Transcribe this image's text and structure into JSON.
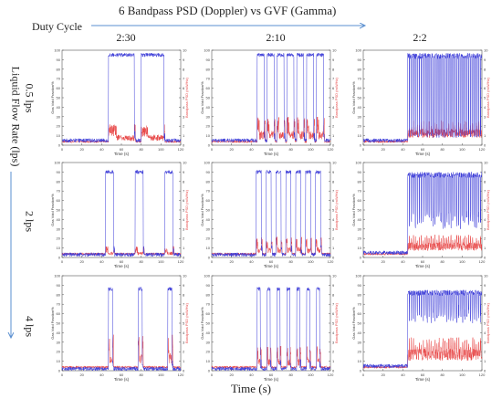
{
  "header": {
    "title": "6 Bandpass PSD (Doppler) vs GVF (Gamma)",
    "duty_cycle_label": "Duty Cycle",
    "flow_rate_label": "Liquid Flow Rate (lps)",
    "time_label": "Time (s)"
  },
  "columns": [
    "2:30",
    "2:10",
    "2:2"
  ],
  "rows": [
    "0.5 lps",
    "2 lps",
    "4 lps"
  ],
  "colors": {
    "gvf": "#3b3bd8",
    "psd": "#e84848",
    "arrow": "#5a8fd0",
    "axis": "#555555"
  },
  "chart_data": {
    "type": "line",
    "panel_common": {
      "xlabel": "Time (s)",
      "ylabel_left": "Gas Void Fraction%",
      "ylabel_right": "Bandpass PSD (mW/Hz)",
      "xlim": [
        0,
        120
      ],
      "ylim_left": [
        0,
        100
      ],
      "ylim_right": [
        0,
        10
      ],
      "x_ticks": [
        "0",
        "20",
        "40",
        "60",
        "80",
        "100",
        "120"
      ],
      "y_ticks_left": [
        "0",
        "10",
        "20",
        "30",
        "40",
        "50",
        "60",
        "70",
        "80",
        "90",
        "100"
      ],
      "y_ticks_right": [
        "0",
        "1",
        "2",
        "3",
        "4",
        "5",
        "6",
        "7",
        "8",
        "9",
        "10"
      ]
    },
    "panels": [
      {
        "row": 0,
        "col": 0,
        "period": 30,
        "gvf_high": 97,
        "gvf_base": 5,
        "psd_peak": 2.2,
        "pulses": [
          [
            47,
            73
          ],
          [
            80,
            103
          ]
        ],
        "note": ""
      },
      {
        "row": 0,
        "col": 1,
        "period": 10,
        "gvf_high": 97,
        "gvf_base": 5,
        "psd_peak": 3.0,
        "pulses": [
          [
            46,
            53
          ],
          [
            56,
            63
          ],
          [
            66,
            73
          ],
          [
            76,
            83
          ],
          [
            86,
            93
          ],
          [
            96,
            103
          ],
          [
            106,
            113
          ]
        ]
      },
      {
        "row": 0,
        "col": 2,
        "period": 2,
        "gvf_high": 97,
        "gvf_base": 5,
        "psd_peak": 2.6,
        "pulses": []
      },
      {
        "row": 1,
        "col": 0,
        "period": 30,
        "gvf_high": 92,
        "gvf_base": 3,
        "psd_peak": 1.2,
        "pulses": [
          [
            44,
            52
          ],
          [
            74,
            82
          ],
          [
            104,
            112
          ]
        ]
      },
      {
        "row": 1,
        "col": 1,
        "period": 10,
        "gvf_high": 92,
        "gvf_base": 3,
        "psd_peak": 2.2,
        "pulses": [
          [
            45,
            50
          ],
          [
            55,
            60
          ],
          [
            65,
            70
          ],
          [
            75,
            80
          ],
          [
            85,
            90
          ],
          [
            95,
            100
          ],
          [
            105,
            110
          ]
        ]
      },
      {
        "row": 1,
        "col": 2,
        "period": 2,
        "gvf_high": 90,
        "gvf_base": 5,
        "psd_peak": 2.4,
        "pulses": []
      },
      {
        "row": 2,
        "col": 0,
        "period": 30,
        "gvf_high": 88,
        "gvf_base": 2,
        "psd_peak": 3.8,
        "pulses": [
          [
            47,
            51
          ],
          [
            77,
            81
          ],
          [
            107,
            111
          ]
        ]
      },
      {
        "row": 2,
        "col": 1,
        "period": 10,
        "gvf_high": 88,
        "gvf_base": 2,
        "psd_peak": 2.6,
        "pulses": [
          [
            46,
            49
          ],
          [
            56,
            59
          ],
          [
            66,
            69
          ],
          [
            76,
            79
          ],
          [
            86,
            89
          ],
          [
            96,
            99
          ],
          [
            106,
            109
          ]
        ]
      },
      {
        "row": 2,
        "col": 2,
        "period": 2,
        "gvf_high": 85,
        "gvf_base": 5,
        "psd_peak": 3.5,
        "pulses": []
      }
    ]
  }
}
